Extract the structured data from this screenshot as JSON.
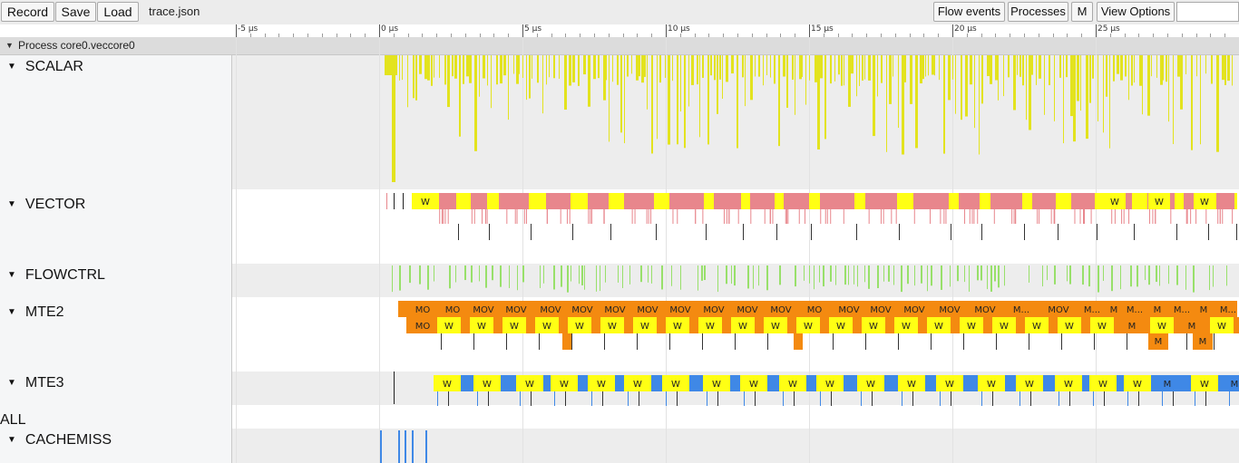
{
  "toolbar": {
    "record_label": "Record",
    "save_label": "Save",
    "load_label": "Load",
    "file_title": "trace.json",
    "flow_events_label": "Flow events",
    "processes_label": "Processes",
    "m_label": "M",
    "view_options_label": "View Options"
  },
  "ruler": {
    "ticks": [
      {
        "label": "-5 µs",
        "time_us": -5
      },
      {
        "label": "0 µs",
        "time_us": 0
      },
      {
        "label": "5 µs",
        "time_us": 5
      },
      {
        "label": "10 µs",
        "time_us": 10
      },
      {
        "label": "15 µs",
        "time_us": 15
      },
      {
        "label": "20 µs",
        "time_us": 20
      },
      {
        "label": "25 µs",
        "time_us": 25
      }
    ]
  },
  "process": {
    "title": "Process core0.veccore0"
  },
  "tracks": {
    "scalar": "SCALAR",
    "vector": "VECTOR",
    "flowctrl": "FLOWCTRL",
    "mte2": "MTE2",
    "mte3": "MTE3",
    "all": "ALL",
    "cachemiss": "CACHEMISS"
  },
  "slice_labels": {
    "vector_row1": [
      "W",
      "W",
      "W",
      "W"
    ],
    "mte2_row1": [
      "MO",
      "MO",
      "MOV",
      "MOV",
      "MOV",
      "MOV",
      "MOV",
      "MOV",
      "MOV",
      "MOV",
      "MOV",
      "MOV",
      "MO",
      "MOV",
      "MOV",
      "MOV",
      "MOV",
      "MOV",
      "M...",
      "MOV",
      "M...",
      "M",
      "M...",
      "M",
      "M...",
      "M",
      "M..."
    ],
    "mte2_row2": [
      "MO",
      "W",
      "W",
      "W",
      "W",
      "W",
      "W",
      "W",
      "W",
      "W",
      "W",
      "W",
      "W",
      "W",
      "W",
      "W",
      "W",
      "W",
      "W",
      "W",
      "W",
      "W",
      "M",
      "W",
      "M",
      "W",
      "M",
      "W"
    ],
    "mte2_row3": [
      "M",
      "M"
    ],
    "mte3_row1": [
      "W",
      "W",
      "W",
      "W",
      "W",
      "W",
      "W",
      "W",
      "W",
      "W",
      "W",
      "W",
      "W",
      "W",
      "W",
      "W",
      "W",
      "W",
      "W",
      "M",
      "W",
      "M",
      "W",
      "M",
      "W"
    ]
  },
  "colors": {
    "scalar": "#e3e31e",
    "vector_pink": "#e8868c",
    "flowctrl_green": "#98e06a",
    "mte2_orange": "#f48a10",
    "mte3_blue": "#3f88e6",
    "wait_yellow": "#ffff14"
  },
  "icons": {
    "expand": "triangle-down-icon"
  }
}
